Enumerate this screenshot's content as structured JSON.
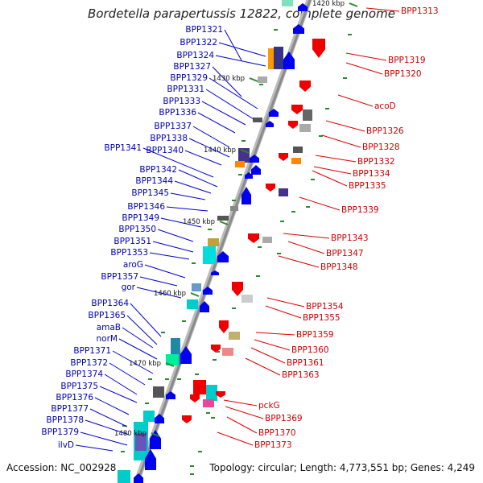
{
  "title": "Bordetella parapertussis 12822, complete genome",
  "footer": {
    "accession": "Accession: NC_002928",
    "topology": "Topology: circular; Length: 4,773,551 bp; Genes: 4,249"
  },
  "kbp_marks": [
    "1420 kbp",
    "1430 kbp",
    "1440 kbp",
    "1450 kbp",
    "1460 kbp",
    "1470 kbp",
    "1480 kbp"
  ],
  "left_labels": [
    "BPP1321",
    "BPP1322",
    "BPP1324",
    "BPP1327",
    "BPP1329",
    "BPP1331",
    "BPP1333",
    "BPP1336",
    "BPP1337",
    "BPP1338",
    "BPP1341",
    "BPP1340",
    "BPP1342",
    "BPP1344",
    "BPP1345",
    "BPP1346",
    "BPP1349",
    "BPP1350",
    "BPP1351",
    "BPP1353",
    "aroG",
    "BPP1357",
    "gor",
    "BPP1364",
    "BPP1365",
    "amaB",
    "norM",
    "BPP1371",
    "BPP1372",
    "BPP1374",
    "BPP1375",
    "BPP1376",
    "BPP1377",
    "BPP1378",
    "BPP1379",
    "ilvD"
  ],
  "right_labels": [
    "BPP1313",
    "BPP1319",
    "BPP1320",
    "acoD",
    "BPP1326",
    "BPP1328",
    "BPP1332",
    "BPP1334",
    "BPP1335",
    "BPP1339",
    "BPP1343",
    "BPP1347",
    "BPP1348",
    "BPP1354",
    "BPP1355",
    "BPP1359",
    "BPP1360",
    "BPP1361",
    "BPP1363",
    "pckG",
    "BPP1369",
    "BPP1370",
    "BPP1373"
  ],
  "colors": {
    "backbone": "#999999",
    "left_label": "#0000aa",
    "right_label": "#cc0000",
    "forward_gene": "#0000ee",
    "reverse_gene": "#ee0000"
  }
}
